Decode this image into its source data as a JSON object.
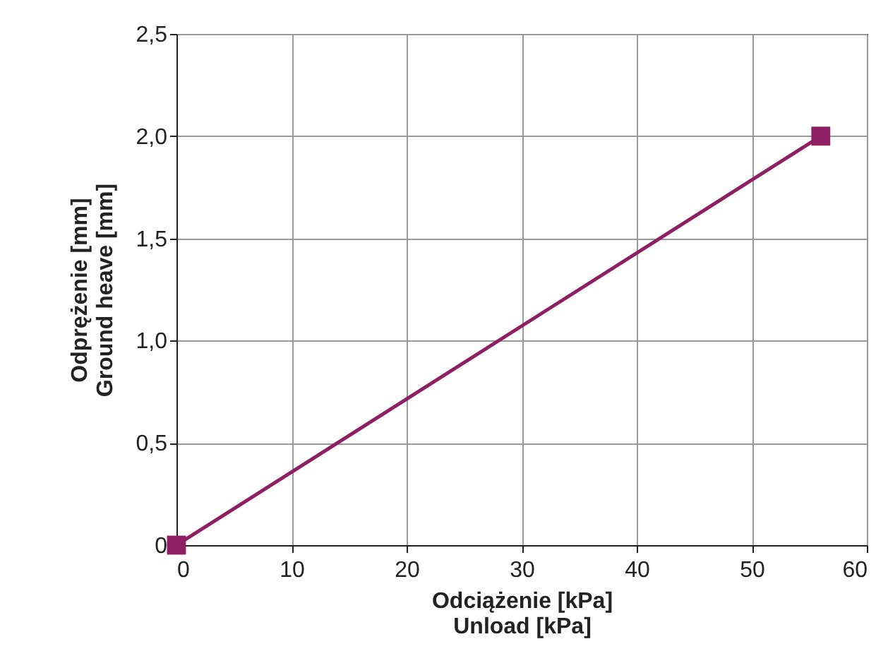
{
  "chart_data": {
    "type": "line",
    "xlabel": "Odciążenie [kPa]\nUnload [kPa]",
    "ylabel": "Odprężenie [mm]\nGround heave [mm]",
    "x": [
      0,
      56
    ],
    "series": [
      {
        "color": "#8e1f62",
        "values": [
          0,
          2.0
        ]
      }
    ],
    "xlim": [
      0,
      60
    ],
    "xticks": [
      0,
      10,
      20,
      30,
      40,
      50,
      60
    ],
    "ylim": [
      0,
      2.5
    ],
    "yticks": [
      0,
      {
        "value": 0.5,
        "label": "0,5"
      },
      {
        "value": 1,
        "label": "1,0"
      },
      {
        "value": 1.5,
        "label": "1,5"
      },
      {
        "value": 2,
        "label": "2,0"
      },
      {
        "value": 2.5,
        "label": "2,5"
      }
    ],
    "grid": true,
    "marker": "square",
    "line_style": "solid"
  }
}
